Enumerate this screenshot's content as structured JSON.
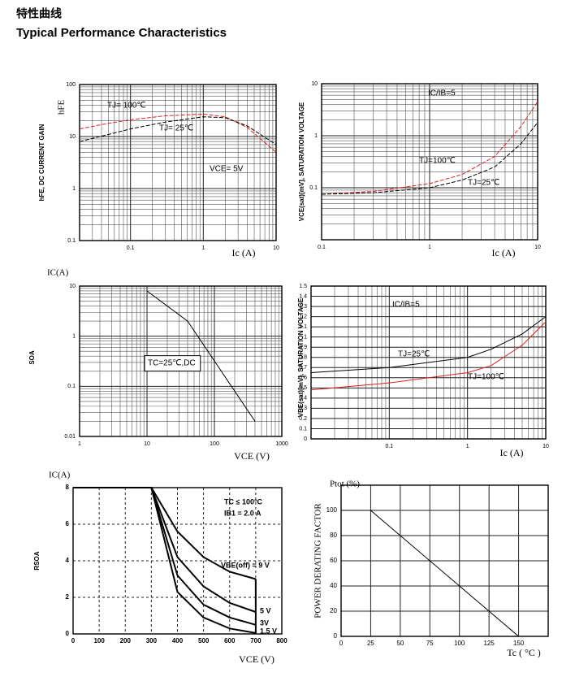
{
  "header": {
    "title_cn": "特性曲线",
    "title": "Typical Performance Characteristics"
  },
  "chart_data": [
    {
      "type": "line",
      "y_title": "hFE",
      "ylabel": "hFE, DC CURRENT GAIN",
      "xlabel": "Ic (A)",
      "xlog": true,
      "ylog": true,
      "grid": true,
      "minor_grid": true,
      "line_style": "dashed",
      "xlim": [
        0.02,
        10
      ],
      "ylim": [
        0.1,
        100
      ],
      "xticks": [
        0.1,
        1,
        10
      ],
      "yticks": [
        0.1,
        1,
        10,
        100
      ],
      "annotations": [
        "VCE= 5V"
      ],
      "series": [
        {
          "name": "TJ= 100℃",
          "color": "#e02020",
          "x": [
            0.02,
            0.05,
            0.1,
            0.3,
            1,
            2,
            4,
            10
          ],
          "values": [
            14,
            18,
            21,
            25,
            27,
            24,
            15,
            5
          ]
        },
        {
          "name": "TJ= 25℃",
          "color": "#000000",
          "x": [
            0.02,
            0.05,
            0.1,
            0.3,
            1,
            2,
            4,
            10
          ],
          "values": [
            8,
            11,
            14,
            19,
            24,
            23,
            16,
            7
          ]
        }
      ]
    },
    {
      "type": "line",
      "ylabel": "VCE(sat)[mV], SATURATION VOLTAGE",
      "xlabel": "Ic (A)",
      "xlog": true,
      "ylog": true,
      "grid": true,
      "minor_grid": true,
      "line_style": "dashed",
      "xlim": [
        0.1,
        10
      ],
      "ylim": [
        0.01,
        10
      ],
      "xticks": [
        0.1,
        1,
        10
      ],
      "yticks": [
        0.1,
        1,
        10
      ],
      "annotations": [
        "IC/IB=5"
      ],
      "series": [
        {
          "name": "TJ=100℃",
          "color": "#e02020",
          "x": [
            0.1,
            0.3,
            1,
            2,
            4,
            7,
            10
          ],
          "values": [
            0.075,
            0.085,
            0.12,
            0.18,
            0.4,
            1.5,
            4.5
          ]
        },
        {
          "name": "TJ=25℃",
          "color": "#000000",
          "x": [
            0.1,
            0.3,
            1,
            2,
            4,
            7,
            10
          ],
          "values": [
            0.075,
            0.08,
            0.1,
            0.14,
            0.25,
            0.7,
            1.8
          ]
        }
      ]
    },
    {
      "type": "line",
      "y_title": "IC(A)",
      "ylabel": "SOA",
      "xlabel": "VCE (V)",
      "xlog": true,
      "ylog": true,
      "grid": true,
      "minor_grid": true,
      "line_style": "solid",
      "xlim": [
        1,
        1000
      ],
      "ylim": [
        0.01,
        10
      ],
      "xticks": [
        1,
        10,
        100,
        1000
      ],
      "yticks": [
        0.01,
        0.1,
        1,
        10
      ],
      "annotations": [
        "TC=25℃,DC"
      ],
      "series": [
        {
          "color": "#000000",
          "x": [
            10,
            40,
            400
          ],
          "values": [
            8,
            2,
            0.02
          ]
        }
      ]
    },
    {
      "type": "line",
      "ylabel": "VBE(sat)[mV], SATURATION VOLTAGE",
      "xlabel": "Ic (A)",
      "xlog": true,
      "ylog": false,
      "grid": true,
      "minor_grid": true,
      "line_style": "solid",
      "xlim": [
        0.01,
        10
      ],
      "ylim": [
        0,
        1.5
      ],
      "xticks": [
        0.1,
        1,
        10
      ],
      "yticks": [
        0,
        0.1,
        0.2,
        0.3,
        0.4,
        0.5,
        0.6,
        0.7,
        0.8,
        0.9,
        1,
        1.1,
        1.2,
        1.3,
        1.4,
        1.5
      ],
      "annotations": [
        "IC/IB=5"
      ],
      "series": [
        {
          "name": "TJ=25℃",
          "color": "#000000",
          "x": [
            0.01,
            0.1,
            1,
            2,
            5,
            10
          ],
          "values": [
            0.65,
            0.7,
            0.8,
            0.88,
            1.03,
            1.2
          ]
        },
        {
          "name": "TJ=100℃",
          "color": "#e02020",
          "x": [
            0.01,
            0.1,
            1,
            2,
            5,
            10
          ],
          "values": [
            0.48,
            0.55,
            0.65,
            0.72,
            0.92,
            1.15
          ]
        }
      ]
    },
    {
      "type": "line",
      "y_title": "IC(A)",
      "ylabel": "RSOA",
      "xlabel": "VCE (V)",
      "xlog": false,
      "ylog": false,
      "grid": true,
      "grid_style": "dashed",
      "line_style": "solid",
      "line_width": 2,
      "xlim": [
        0,
        800
      ],
      "ylim": [
        0,
        8
      ],
      "xticks": [
        0,
        100,
        200,
        300,
        400,
        500,
        600,
        700,
        800
      ],
      "yticks": [
        0,
        2,
        4,
        6,
        8
      ],
      "annotations": [
        "TC ≤ 100°C",
        "IB1 = 2.0 A"
      ],
      "series": [
        {
          "name": "VBE(off) = 9 V",
          "color": "#000000",
          "x": [
            0,
            300,
            400,
            500,
            600,
            700
          ],
          "values": [
            8,
            8,
            5.6,
            4.2,
            3.4,
            3.0
          ]
        },
        {
          "name": "5 V",
          "color": "#000000",
          "x": [
            0,
            300,
            400,
            500,
            600,
            700
          ],
          "values": [
            8,
            8,
            4.2,
            2.6,
            1.7,
            1.2
          ]
        },
        {
          "name": "3V",
          "color": "#000000",
          "x": [
            0,
            300,
            400,
            500,
            600,
            700
          ],
          "values": [
            8,
            8,
            3.2,
            1.6,
            0.9,
            0.5
          ]
        },
        {
          "name": "1.5 V",
          "color": "#000000",
          "x": [
            0,
            300,
            400,
            500,
            600,
            700
          ],
          "values": [
            8,
            8,
            2.3,
            0.9,
            0.3,
            0.05
          ]
        }
      ]
    },
    {
      "type": "line",
      "y_title": "Ptot (%)",
      "ylabel": "POWER DERATING FACTOR",
      "xlabel": "Tc ( °C )",
      "xlog": false,
      "ylog": false,
      "grid": true,
      "line_style": "solid",
      "xlim": [
        0,
        175
      ],
      "ylim": [
        0,
        120
      ],
      "xticks": [
        0,
        25,
        50,
        75,
        100,
        125,
        150
      ],
      "yticks": [
        0,
        20,
        40,
        60,
        80,
        100
      ],
      "series": [
        {
          "color": "#000000",
          "x": [
            0,
            25,
            150
          ],
          "values": [
            100,
            100,
            0
          ]
        }
      ]
    }
  ]
}
